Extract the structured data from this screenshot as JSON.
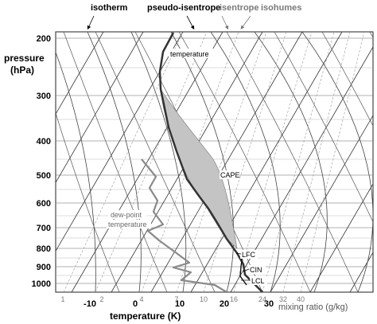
{
  "legend": {
    "isotherm": "isotherm",
    "pseudo_isentrope": "pseudo-isentrope",
    "isentrope": "isentrope",
    "isohumes": "isohumes"
  },
  "y_axis": {
    "title_line1": "pressure",
    "title_line2": "(hPa)",
    "ticks": [
      "200",
      "300",
      "400",
      "500",
      "600",
      "700",
      "800",
      "900",
      "1000"
    ]
  },
  "x_axis": {
    "title": "temperature (K)",
    "temperature_ticks": [
      "-10",
      "0",
      "10",
      "20",
      "30"
    ],
    "mixing_ratio_label": "mixing ratio (g/kg)",
    "mixing_ratio_ticks": [
      "1",
      "2",
      "4",
      "7",
      "10",
      "16",
      "24",
      "32",
      "40"
    ]
  },
  "annotations": {
    "temperature": "temperature",
    "dewpoint_line1": "dew-point",
    "dewpoint_line2": "temperature",
    "cape": "CAPE",
    "lfc": "LFC",
    "cin": "CIN",
    "lcl": "LCL"
  },
  "colors": {
    "grid": "#444444",
    "thin_grid": "#9a9a9a",
    "temperature": "#333333",
    "dewpoint": "#8a8a8a",
    "cape_fill": "#c4c4c4",
    "text": "#000000",
    "light_text": "#7a7a7a"
  }
}
